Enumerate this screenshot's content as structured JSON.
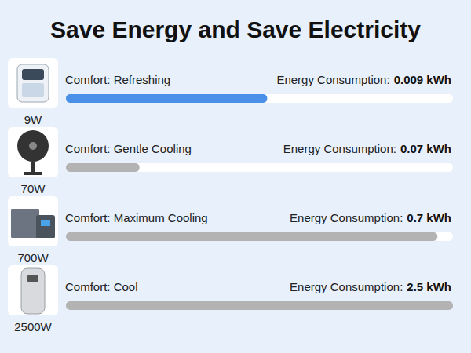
{
  "chart_data": {
    "type": "bar",
    "orientation": "horizontal",
    "title": "Save Energy and Save Electricity",
    "categories": [
      "9W",
      "70W",
      "700W",
      "2500W"
    ],
    "values": [
      52,
      19,
      96,
      100
    ],
    "xlim": [
      0,
      100
    ],
    "tick_labels": false,
    "colors": [
      "#4a90e8",
      "#b3b3b3",
      "#b3b3b3",
      "#b3b3b3"
    ],
    "comfort": [
      "Comfort: Refreshing",
      "Comfort: Gentle Cooling",
      "Comfort: Maximum Cooling",
      "Comfort: Cool"
    ],
    "energy_label": "Energy Consumption:",
    "energy": [
      "0.009 kWh",
      "0.07 kWh",
      "0.7 kWh",
      "2.5 kWh"
    ]
  }
}
